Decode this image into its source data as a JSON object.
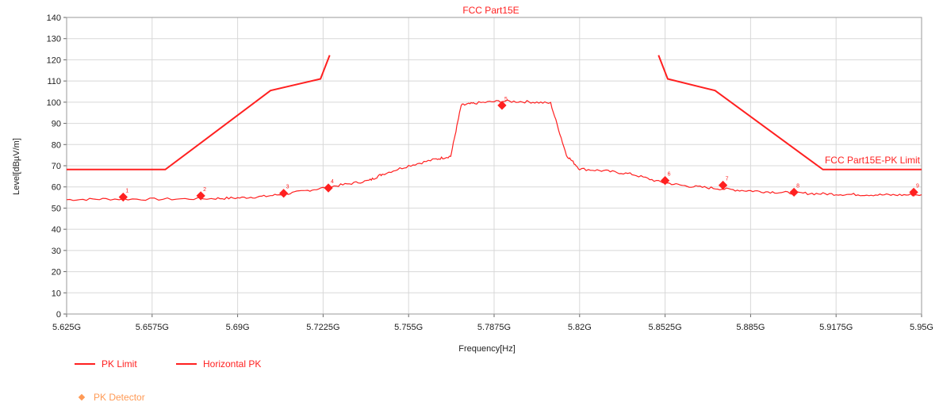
{
  "chart_data": {
    "type": "line",
    "title": "FCC Part15E",
    "xlabel": "Frequency[Hz]",
    "ylabel": "Level[dBµV/m]",
    "xlim": [
      5.625,
      5.95
    ],
    "ylim": [
      0,
      140
    ],
    "x_ticks": [
      5.625,
      5.6575,
      5.69,
      5.7225,
      5.755,
      5.7875,
      5.82,
      5.8525,
      5.885,
      5.9175,
      5.95
    ],
    "x_tick_labels": [
      "5.625G",
      "5.6575G",
      "5.69G",
      "5.7225G",
      "5.755G",
      "5.7875G",
      "5.82G",
      "5.8525G",
      "5.885G",
      "5.9175G",
      "5.95G"
    ],
    "y_ticks": [
      0,
      10,
      20,
      30,
      40,
      50,
      60,
      70,
      80,
      90,
      100,
      110,
      120,
      130,
      140
    ],
    "y_tick_labels": [
      "0",
      "10",
      "20",
      "30",
      "40",
      "50",
      "60",
      "70",
      "80",
      "90",
      "100",
      "110",
      "120",
      "130",
      "140"
    ],
    "grid": true,
    "limit_annotation": "FCC Part15E-PK Limit",
    "series": [
      {
        "name": "PK Limit",
        "color": "#ff2020",
        "segments": [
          {
            "x": [
              5.625,
              5.6625,
              5.7025,
              5.7215,
              5.725
            ],
            "y": [
              68.2,
              68.2,
              105.5,
              111.0,
              122.2
            ]
          },
          {
            "x": [
              5.85,
              5.8535,
              5.8715,
              5.9125,
              5.95
            ],
            "y": [
              122.2,
              111.0,
              105.5,
              68.2,
              68.2
            ]
          }
        ]
      },
      {
        "name": "Horizontal PK",
        "color": "#ff2020",
        "x": [
          5.625,
          5.64,
          5.66,
          5.68,
          5.69,
          5.7,
          5.71,
          5.72,
          5.73,
          5.74,
          5.745,
          5.755,
          5.765,
          5.771,
          5.775,
          5.78,
          5.79,
          5.8,
          5.809,
          5.815,
          5.82,
          5.83,
          5.84,
          5.85,
          5.86,
          5.87,
          5.88,
          5.89,
          5.9,
          5.91,
          5.92,
          5.93,
          5.94,
          5.95
        ],
        "y": [
          54.0,
          54.3,
          54.2,
          54.5,
          54.8,
          55.5,
          57.0,
          59.0,
          61.0,
          63.0,
          66.0,
          70.0,
          73.0,
          74.5,
          98.5,
          99.5,
          100.5,
          100.2,
          99.5,
          75.0,
          68.5,
          67.5,
          66.0,
          62.5,
          60.5,
          59.5,
          58.5,
          57.8,
          57.2,
          56.8,
          56.5,
          56.3,
          56.2,
          56.3
        ]
      },
      {
        "name": "PK Detector",
        "color": "#ff9a55",
        "points": [
          {
            "label": "1",
            "x": 5.6465,
            "y": 55.2
          },
          {
            "label": "2",
            "x": 5.676,
            "y": 55.8
          },
          {
            "label": "3",
            "x": 5.7075,
            "y": 57.0
          },
          {
            "label": "4",
            "x": 5.7245,
            "y": 59.5
          },
          {
            "label": "5",
            "x": 5.7905,
            "y": 98.5
          },
          {
            "label": "6",
            "x": 5.8525,
            "y": 63.0
          },
          {
            "label": "7",
            "x": 5.8745,
            "y": 60.8
          },
          {
            "label": "8",
            "x": 5.9015,
            "y": 57.5
          },
          {
            "label": "9",
            "x": 5.947,
            "y": 57.5
          }
        ]
      }
    ],
    "legend": [
      {
        "label": "PK Limit",
        "kind": "line"
      },
      {
        "label": "Horizontal PK",
        "kind": "line"
      },
      {
        "label": "PK Detector",
        "kind": "marker"
      }
    ]
  }
}
